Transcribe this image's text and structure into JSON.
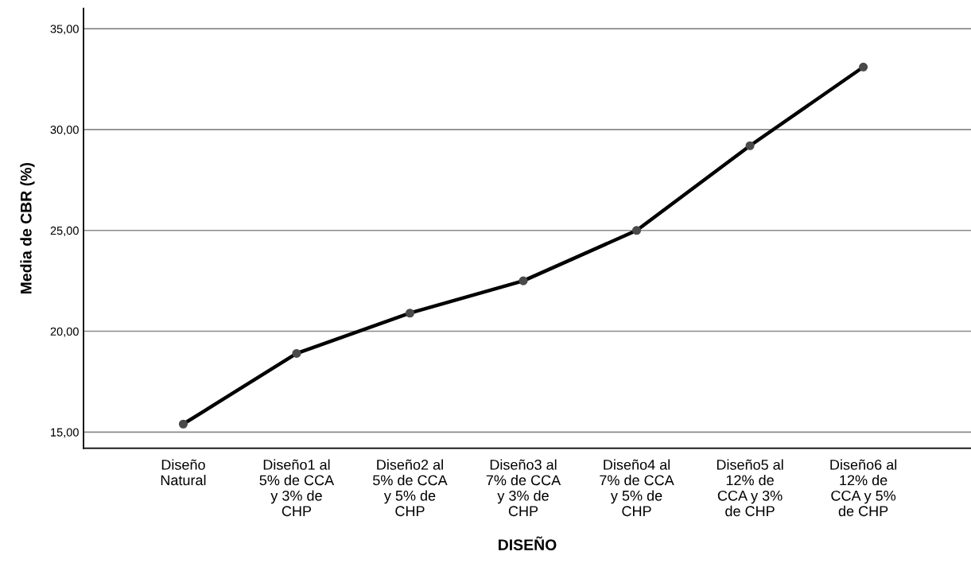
{
  "chart_data": {
    "type": "line",
    "xlabel": "DISEÑO",
    "ylabel": "Media de CBR (%)",
    "categories": [
      "Diseño\nNatural",
      "Diseño1 al\n5% de CCA\ny 3% de\nCHP",
      "Diseño2 al\n5% de CCA\ny 5% de\nCHP",
      "Diseño3 al\n7% de CCA\ny 3% de\nCHP",
      "Diseño4 al\n7% de CCA\ny 5% de\nCHP",
      "Diseño5 al\n12% de\nCCA y 3%\nde CHP",
      "Diseño6 al\n12% de\nCCA y 5%\nde CHP"
    ],
    "series": [
      {
        "color": "#000000",
        "values": [
          15.4,
          18.9,
          20.9,
          22.5,
          25.0,
          29.2,
          33.1
        ]
      }
    ],
    "ylim": [
      14.2,
      36.0
    ],
    "yticks": [
      {
        "value": 15,
        "label": "15,00"
      },
      {
        "value": 20,
        "label": "20,00"
      },
      {
        "value": 25,
        "label": "25,00"
      },
      {
        "value": 30,
        "label": "30,00"
      },
      {
        "value": 35,
        "label": "35,00"
      }
    ],
    "grid": "y",
    "marker": "circle",
    "line_style": "solid"
  }
}
